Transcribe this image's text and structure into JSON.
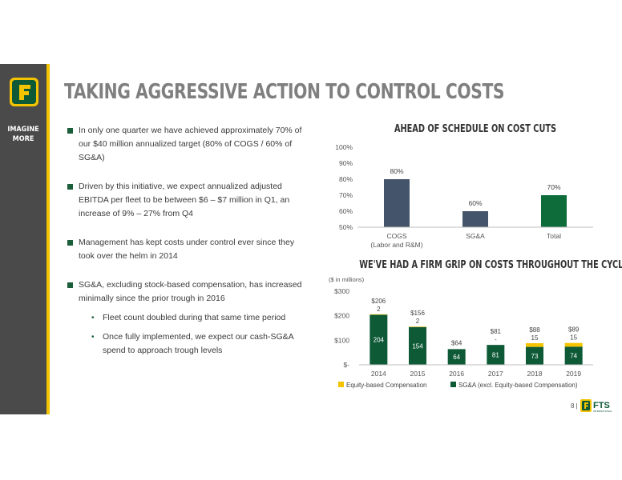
{
  "page": {
    "title": "TAKING AGGRESSIVE ACTION TO CONTROL COSTS",
    "tagline": [
      "IMAGINE",
      "MORE"
    ],
    "page_number": "8 |",
    "logo_text": "FTS",
    "logo_subtext": "INTERNATIONAL"
  },
  "bullets": [
    {
      "text": "In only one quarter we have achieved approximately 70% of our $40 million annualized target (80% of COGS / 60% of SG&A)"
    },
    {
      "text": "Driven by this initiative, we expect annualized adjusted EBITDA per fleet to be between $6 – $7 million in Q1, an increase of 9% – 27% from Q4"
    },
    {
      "text": "Management has kept costs under control ever since they took over the helm in 2014"
    },
    {
      "text": "SG&A, excluding stock-based compensation, has increased minimally since the prior trough in 2016",
      "sub": [
        "Fleet count doubled during that same time period",
        "Once fully implemented, we expect our cash-SG&A spend to approach trough levels"
      ]
    }
  ],
  "chart_data": [
    {
      "type": "bar",
      "title": "AHEAD OF SCHEDULE ON COST CUTS",
      "categories": [
        [
          "COGS",
          "(Labor and R&M)"
        ],
        [
          "SG&A"
        ],
        [
          "Total"
        ]
      ],
      "values": [
        80,
        60,
        70
      ],
      "value_labels": [
        "80%",
        "60%",
        "70%"
      ],
      "colors": [
        "#44546a",
        "#44546a",
        "#0e6b3a"
      ],
      "yticks": [
        "100%",
        "90%",
        "80%",
        "70%",
        "60%",
        "50%"
      ],
      "ylim": [
        50,
        100
      ],
      "grid": false
    },
    {
      "type": "bar",
      "stacked": true,
      "title": "WE'VE HAD A FIRM GRIP ON COSTS THROUGHOUT THE CYCLE",
      "subtitle": "($ in millions)",
      "categories": [
        "2014",
        "2015",
        "2016",
        "2017",
        "2018",
        "2019"
      ],
      "series": [
        {
          "name": "SG&A (excl. Equity-based Compensation)",
          "color": "#0e5a36",
          "values": [
            204,
            154,
            64,
            81,
            73,
            74
          ],
          "labels": [
            "204",
            "154",
            "64",
            "81",
            "73",
            "74"
          ]
        },
        {
          "name": "Equity-based Compensation",
          "color": "#f5c400",
          "values": [
            2,
            2,
            0,
            0,
            15,
            15
          ],
          "labels": [
            "2",
            "2",
            "",
            "-",
            "15",
            "15"
          ]
        }
      ],
      "totals": [
        "$206",
        "$156",
        "$64",
        "$81",
        "$88",
        "$89"
      ],
      "yticks": [
        "$300",
        "$200",
        "$100",
        "$-"
      ],
      "ylim": [
        0,
        300
      ],
      "legend_placement": "bottom",
      "grid": false
    }
  ]
}
